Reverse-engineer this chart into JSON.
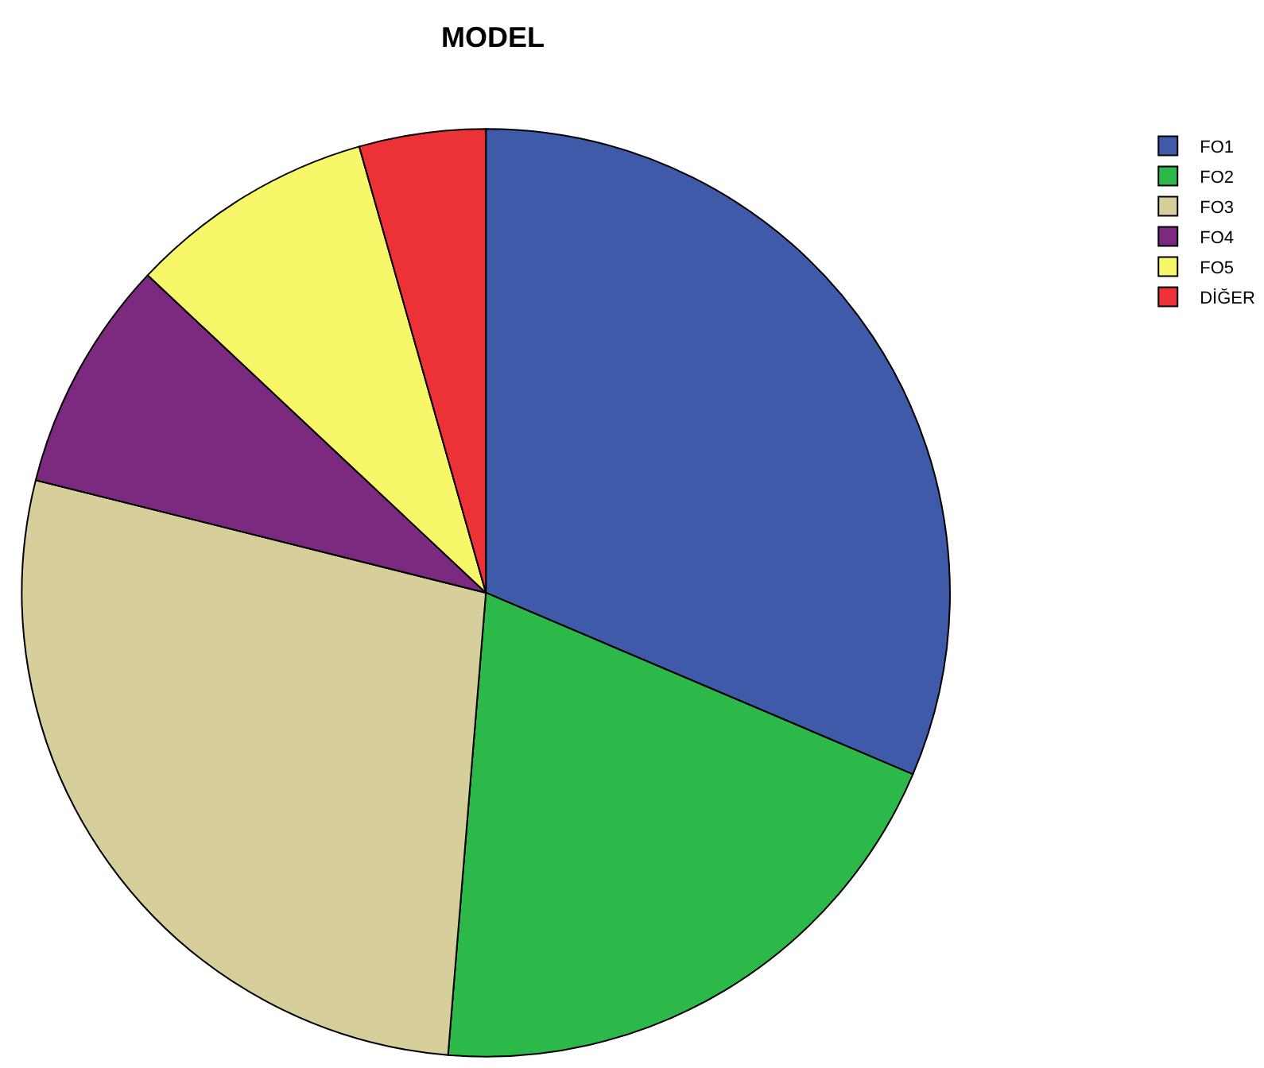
{
  "chart_data": {
    "type": "pie",
    "title": "MODEL",
    "categories": [
      "FO1",
      "FO2",
      "FO3",
      "FO4",
      "FO5",
      "DİĞER"
    ],
    "values": [
      31.4,
      19.9,
      27.6,
      8.1,
      8.6,
      4.4
    ],
    "colors": [
      "#3f5aa8",
      "#2db84a",
      "#d6cf9c",
      "#7b2a7f",
      "#f8f76a",
      "#ec3237"
    ],
    "legend": "top right"
  }
}
